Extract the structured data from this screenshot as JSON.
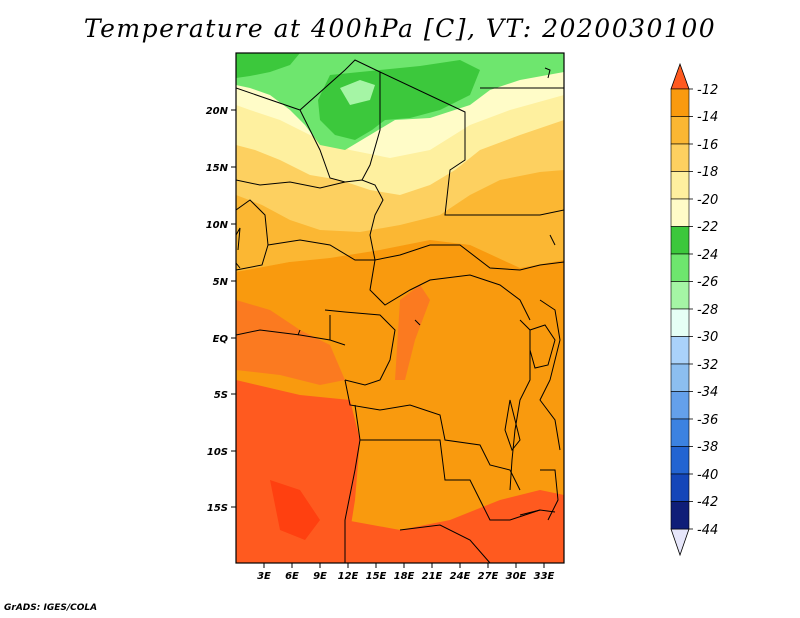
{
  "title": "Temperature at 400hPa [C], VT: 2020030100",
  "credit": "GrADS: IGES/COLA",
  "map": {
    "lon_labels": [
      "3E",
      "6E",
      "9E",
      "12E",
      "15E",
      "18E",
      "21E",
      "24E",
      "27E",
      "30E",
      "33E"
    ],
    "lat_labels": [
      "20N",
      "15N",
      "10N",
      "5N",
      "EQ",
      "5S",
      "10S",
      "15S"
    ]
  },
  "colorbar": {
    "levels": [
      "-12",
      "-14",
      "-16",
      "-18",
      "-20",
      "-22",
      "-24",
      "-26",
      "-28",
      "-30",
      "-32",
      "-34",
      "-36",
      "-38",
      "-40",
      "-42",
      "-44"
    ],
    "colors": [
      "#ff5a1f",
      "#f99a0e",
      "#fbb733",
      "#fdd060",
      "#fef09f",
      "#fffcc8",
      "#3cc83c",
      "#6ee66e",
      "#a5f5a5",
      "#e6fff5",
      "#aad2fa",
      "#8cbef0",
      "#64a0eb",
      "#3c82e1",
      "#2364d2",
      "#1446b9",
      "#0f1e78",
      "#1e0a5a"
    ]
  }
}
